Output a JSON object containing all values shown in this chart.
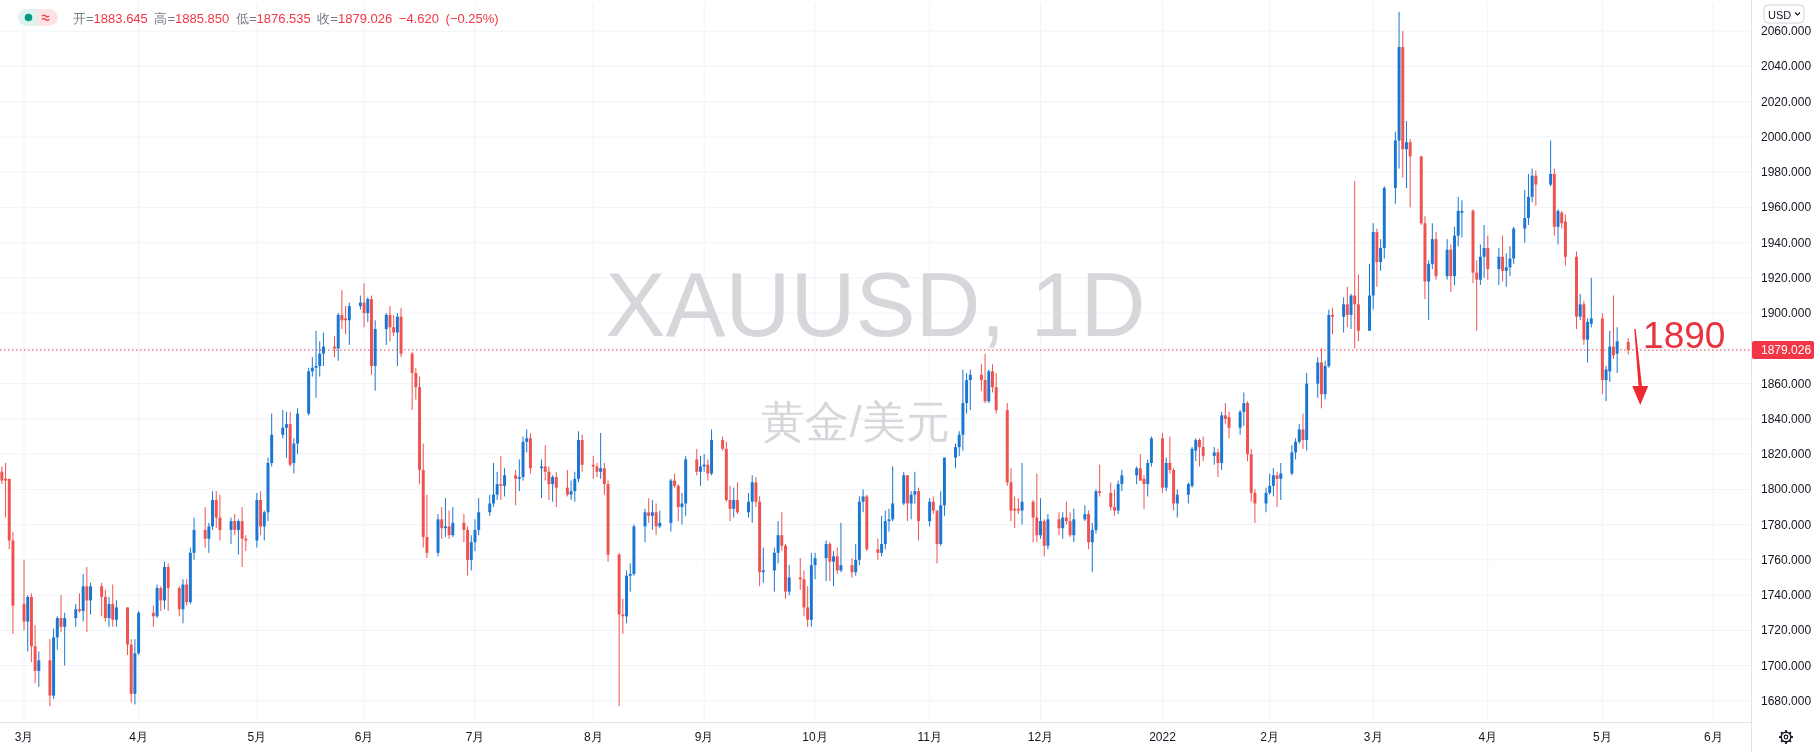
{
  "chart_data": {
    "type": "candlestick",
    "title": "XAUUSD, 1D",
    "subtitle": "黄金/美元",
    "ylabel": "USD",
    "annotations": [
      "开=1883.645 高=1885.850 低=1876.535 收=1879.026 −4.620 (−0.25%)",
      "1890"
    ],
    "x": [
      "2021-02-23",
      "2021-02-24",
      "2021-02-25",
      "2021-02-26",
      "2021-03-01",
      "2021-03-02",
      "2021-03-03",
      "2021-03-04",
      "2021-03-05",
      "2021-03-08",
      "2021-03-09",
      "2021-03-10",
      "2021-03-11",
      "2021-03-12",
      "2021-03-15",
      "2021-03-16",
      "2021-03-17",
      "2021-03-18",
      "2021-03-19",
      "2021-03-22",
      "2021-03-23",
      "2021-03-24",
      "2021-03-25",
      "2021-03-26",
      "2021-03-29",
      "2021-03-30",
      "2021-03-31",
      "2021-04-01",
      "2021-04-05",
      "2021-04-06",
      "2021-04-07",
      "2021-04-08",
      "2021-04-09",
      "2021-04-12",
      "2021-04-13",
      "2021-04-14",
      "2021-04-15",
      "2021-04-16",
      "2021-04-19",
      "2021-04-20",
      "2021-04-21",
      "2021-04-22",
      "2021-04-23",
      "2021-04-26",
      "2021-04-27",
      "2021-04-28",
      "2021-04-29",
      "2021-04-30",
      "2021-05-03",
      "2021-05-04",
      "2021-05-05",
      "2021-05-06",
      "2021-05-07",
      "2021-05-10",
      "2021-05-11",
      "2021-05-12",
      "2021-05-13",
      "2021-05-14",
      "2021-05-17",
      "2021-05-18",
      "2021-05-19",
      "2021-05-20",
      "2021-05-21",
      "2021-05-24",
      "2021-05-25",
      "2021-05-26",
      "2021-05-27",
      "2021-05-28",
      "2021-05-31",
      "2021-06-01",
      "2021-06-02",
      "2021-06-03",
      "2021-06-04",
      "2021-06-07",
      "2021-06-08",
      "2021-06-09",
      "2021-06-10",
      "2021-06-11",
      "2021-06-14",
      "2021-06-15",
      "2021-06-16",
      "2021-06-17",
      "2021-06-18",
      "2021-06-21",
      "2021-06-22",
      "2021-06-23",
      "2021-06-24",
      "2021-06-25",
      "2021-06-28",
      "2021-06-29",
      "2021-06-30",
      "2021-07-01",
      "2021-07-02",
      "2021-07-05",
      "2021-07-06",
      "2021-07-07",
      "2021-07-08",
      "2021-07-09",
      "2021-07-12",
      "2021-07-13",
      "2021-07-14",
      "2021-07-15",
      "2021-07-16",
      "2021-07-19",
      "2021-07-20",
      "2021-07-21",
      "2021-07-22",
      "2021-07-23",
      "2021-07-26",
      "2021-07-27",
      "2021-07-28",
      "2021-07-29",
      "2021-07-30",
      "2021-08-02",
      "2021-08-03",
      "2021-08-04",
      "2021-08-05",
      "2021-08-06",
      "2021-08-09",
      "2021-08-10",
      "2021-08-11",
      "2021-08-12",
      "2021-08-13",
      "2021-08-16",
      "2021-08-17",
      "2021-08-18",
      "2021-08-19",
      "2021-08-20",
      "2021-08-23",
      "2021-08-24",
      "2021-08-25",
      "2021-08-26",
      "2021-08-27",
      "2021-08-30",
      "2021-08-31",
      "2021-09-01",
      "2021-09-02",
      "2021-09-03",
      "2021-09-06",
      "2021-09-07",
      "2021-09-08",
      "2021-09-09",
      "2021-09-10",
      "2021-09-13",
      "2021-09-14",
      "2021-09-15",
      "2021-09-16",
      "2021-09-17",
      "2021-09-20",
      "2021-09-21",
      "2021-09-22",
      "2021-09-23",
      "2021-09-24",
      "2021-09-27",
      "2021-09-28",
      "2021-09-29",
      "2021-09-30",
      "2021-10-01",
      "2021-10-04",
      "2021-10-05",
      "2021-10-06",
      "2021-10-07",
      "2021-10-08",
      "2021-10-11",
      "2021-10-12",
      "2021-10-13",
      "2021-10-14",
      "2021-10-15",
      "2021-10-18",
      "2021-10-19",
      "2021-10-20",
      "2021-10-21",
      "2021-10-22",
      "2021-10-25",
      "2021-10-26",
      "2021-10-27",
      "2021-10-28",
      "2021-10-29",
      "2021-11-01",
      "2021-11-02",
      "2021-11-03",
      "2021-11-04",
      "2021-11-05",
      "2021-11-08",
      "2021-11-09",
      "2021-11-10",
      "2021-11-11",
      "2021-11-12",
      "2021-11-15",
      "2021-11-16",
      "2021-11-17",
      "2021-11-18",
      "2021-11-19",
      "2021-11-22",
      "2021-11-23",
      "2021-11-24",
      "2021-11-25",
      "2021-11-26",
      "2021-11-29",
      "2021-11-30",
      "2021-12-01",
      "2021-12-02",
      "2021-12-03",
      "2021-12-06",
      "2021-12-07",
      "2021-12-08",
      "2021-12-09",
      "2021-12-10",
      "2021-12-13",
      "2021-12-14",
      "2021-12-15",
      "2021-12-16",
      "2021-12-17",
      "2021-12-20",
      "2021-12-21",
      "2021-12-22",
      "2021-12-23",
      "2021-12-27",
      "2021-12-28",
      "2021-12-29",
      "2021-12-30",
      "2021-12-31",
      "2022-01-03",
      "2022-01-04",
      "2022-01-05",
      "2022-01-06",
      "2022-01-07",
      "2022-01-10",
      "2022-01-11",
      "2022-01-12",
      "2022-01-13",
      "2022-01-14",
      "2022-01-17",
      "2022-01-18",
      "2022-01-19",
      "2022-01-20",
      "2022-01-21",
      "2022-01-24",
      "2022-01-25",
      "2022-01-26",
      "2022-01-27",
      "2022-01-28",
      "2022-01-31",
      "2022-02-01",
      "2022-02-02",
      "2022-02-03",
      "2022-02-04",
      "2022-02-07",
      "2022-02-08",
      "2022-02-09",
      "2022-02-10",
      "2022-02-11",
      "2022-02-14",
      "2022-02-15",
      "2022-02-16",
      "2022-02-17",
      "2022-02-18",
      "2022-02-21",
      "2022-02-22",
      "2022-02-23",
      "2022-02-24",
      "2022-02-25",
      "2022-02-28",
      "2022-03-01",
      "2022-03-02",
      "2022-03-03",
      "2022-03-04",
      "2022-03-07",
      "2022-03-08",
      "2022-03-09",
      "2022-03-10",
      "2022-03-11",
      "2022-03-14",
      "2022-03-15",
      "2022-03-16",
      "2022-03-17",
      "2022-03-18",
      "2022-03-21",
      "2022-03-22",
      "2022-03-23",
      "2022-03-24",
      "2022-03-25",
      "2022-03-28",
      "2022-03-29",
      "2022-03-30",
      "2022-03-31",
      "2022-04-01",
      "2022-04-04",
      "2022-04-05",
      "2022-04-06",
      "2022-04-07",
      "2022-04-08",
      "2022-04-11",
      "2022-04-12",
      "2022-04-13",
      "2022-04-14",
      "2022-04-18",
      "2022-04-19",
      "2022-04-20",
      "2022-04-21",
      "2022-04-22",
      "2022-04-25",
      "2022-04-26",
      "2022-04-27",
      "2022-04-28",
      "2022-04-29",
      "2022-05-02",
      "2022-05-03",
      "2022-05-04",
      "2022-05-05",
      "2022-05-06",
      "2022-05-09"
    ],
    "ohlc": [
      [
        1810,
        1813,
        1803,
        1805
      ],
      [
        1806,
        1815,
        1784,
        1805
      ],
      [
        1806,
        1806,
        1766,
        1771
      ],
      [
        1771,
        1776,
        1718,
        1734
      ],
      [
        1735,
        1760,
        1720,
        1725
      ],
      [
        1725,
        1740,
        1708,
        1739
      ],
      [
        1739,
        1741,
        1702,
        1711
      ],
      [
        1711,
        1723,
        1690,
        1697
      ],
      [
        1697,
        1708,
        1688,
        1703
      ],
      [
        1703,
        1715,
        1677,
        1683
      ],
      [
        1683,
        1721,
        1681,
        1716
      ],
      [
        1716,
        1728,
        1709,
        1727
      ],
      [
        1727,
        1740,
        1719,
        1722
      ],
      [
        1722,
        1730,
        1700,
        1727
      ],
      [
        1727,
        1735,
        1722,
        1732
      ],
      [
        1732,
        1741,
        1730,
        1731
      ],
      [
        1731,
        1752,
        1725,
        1745
      ],
      [
        1745,
        1756,
        1719,
        1737
      ],
      [
        1737,
        1747,
        1729,
        1745
      ],
      [
        1745,
        1747,
        1728,
        1739
      ],
      [
        1739,
        1743,
        1725,
        1727
      ],
      [
        1727,
        1739,
        1722,
        1735
      ],
      [
        1735,
        1746,
        1722,
        1726
      ],
      [
        1726,
        1737,
        1722,
        1733
      ],
      [
        1733,
        1733,
        1706,
        1712
      ],
      [
        1712,
        1715,
        1679,
        1684
      ],
      [
        1684,
        1715,
        1678,
        1707
      ],
      [
        1707,
        1731,
        1706,
        1730
      ],
      [
        1730,
        1734,
        1722,
        1728
      ],
      [
        1728,
        1746,
        1727,
        1744
      ],
      [
        1744,
        1745,
        1731,
        1737
      ],
      [
        1737,
        1759,
        1732,
        1756
      ],
      [
        1756,
        1758,
        1731,
        1744
      ],
      [
        1744,
        1745,
        1728,
        1732
      ],
      [
        1732,
        1749,
        1724,
        1746
      ],
      [
        1746,
        1749,
        1734,
        1736
      ],
      [
        1736,
        1767,
        1735,
        1764
      ],
      [
        1764,
        1784,
        1760,
        1777
      ],
      [
        1777,
        1790,
        1767,
        1772
      ],
      [
        1772,
        1781,
        1764,
        1779
      ],
      [
        1779,
        1799,
        1777,
        1794
      ],
      [
        1794,
        1799,
        1778,
        1784
      ],
      [
        1784,
        1797,
        1771,
        1777
      ],
      [
        1777,
        1784,
        1769,
        1782
      ],
      [
        1782,
        1786,
        1774,
        1777
      ],
      [
        1777,
        1783,
        1763,
        1782
      ],
      [
        1782,
        1790,
        1756,
        1772
      ],
      [
        1772,
        1774,
        1765,
        1771
      ],
      [
        1771,
        1798,
        1767,
        1794
      ],
      [
        1794,
        1799,
        1774,
        1779
      ],
      [
        1779,
        1788,
        1771,
        1787
      ],
      [
        1787,
        1818,
        1782,
        1815
      ],
      [
        1815,
        1843,
        1813,
        1831
      ],
      [
        1831,
        1845,
        1829,
        1835
      ],
      [
        1835,
        1844,
        1818,
        1837
      ],
      [
        1837,
        1844,
        1813,
        1814
      ],
      [
        1815,
        1829,
        1809,
        1826
      ],
      [
        1826,
        1846,
        1820,
        1843
      ],
      [
        1843,
        1869,
        1842,
        1867
      ],
      [
        1867,
        1875,
        1864,
        1869
      ],
      [
        1869,
        1890,
        1852,
        1870
      ],
      [
        1870,
        1884,
        1864,
        1877
      ],
      [
        1877,
        1889,
        1870,
        1881
      ],
      [
        1881,
        1887,
        1875,
        1880
      ],
      [
        1880,
        1900,
        1873,
        1899
      ],
      [
        1899,
        1913,
        1891,
        1896
      ],
      [
        1897,
        1904,
        1888,
        1896
      ],
      [
        1896,
        1906,
        1882,
        1904
      ],
      [
        1904,
        1910,
        1902,
        1906
      ],
      [
        1906,
        1917,
        1892,
        1900
      ],
      [
        1900,
        1909,
        1895,
        1908
      ],
      [
        1908,
        1910,
        1865,
        1870
      ],
      [
        1870,
        1896,
        1856,
        1891
      ],
      [
        1891,
        1900,
        1882,
        1899
      ],
      [
        1899,
        1904,
        1884,
        1892
      ],
      [
        1892,
        1899,
        1887,
        1889
      ],
      [
        1889,
        1900,
        1870,
        1898
      ],
      [
        1898,
        1903,
        1875,
        1877
      ],
      [
        1877,
        1878,
        1845,
        1866
      ],
      [
        1866,
        1869,
        1851,
        1858
      ],
      [
        1858,
        1864,
        1803,
        1811
      ],
      [
        1811,
        1826,
        1767,
        1773
      ],
      [
        1773,
        1797,
        1761,
        1764
      ],
      [
        1764,
        1786,
        1762,
        1783
      ],
      [
        1783,
        1790,
        1772,
        1778
      ],
      [
        1778,
        1795,
        1773,
        1779
      ],
      [
        1779,
        1788,
        1772,
        1774
      ],
      [
        1774,
        1790,
        1773,
        1781
      ],
      [
        1781,
        1786,
        1770,
        1777
      ],
      [
        1777,
        1779,
        1751,
        1760
      ],
      [
        1760,
        1774,
        1754,
        1770
      ],
      [
        1770,
        1783,
        1765,
        1777
      ],
      [
        1777,
        1795,
        1774,
        1787
      ],
      [
        1787,
        1797,
        1785,
        1792
      ],
      [
        1792,
        1815,
        1790,
        1797
      ],
      [
        1797,
        1810,
        1794,
        1803
      ],
      [
        1803,
        1819,
        1794,
        1802
      ],
      [
        1802,
        1812,
        1796,
        1808
      ],
      [
        1808,
        1811,
        1791,
        1806
      ],
      [
        1806,
        1817,
        1799,
        1807
      ],
      [
        1807,
        1830,
        1805,
        1827
      ],
      [
        1827,
        1834,
        1821,
        1829
      ],
      [
        1829,
        1832,
        1809,
        1812
      ],
      [
        1812,
        1817,
        1795,
        1813
      ],
      [
        1813,
        1825,
        1805,
        1810
      ],
      [
        1810,
        1813,
        1794,
        1803
      ],
      [
        1803,
        1808,
        1793,
        1807
      ],
      [
        1807,
        1810,
        1790,
        1801
      ],
      [
        1801,
        1811,
        1796,
        1797
      ],
      [
        1797,
        1805,
        1794,
        1799
      ],
      [
        1799,
        1810,
        1793,
        1806
      ],
      [
        1806,
        1833,
        1804,
        1828
      ],
      [
        1828,
        1831,
        1810,
        1814
      ],
      [
        1814,
        1819,
        1806,
        1813
      ],
      [
        1813,
        1815,
        1807,
        1810
      ],
      [
        1810,
        1832,
        1806,
        1812
      ],
      [
        1812,
        1815,
        1797,
        1803
      ],
      [
        1803,
        1805,
        1759,
        1763
      ],
      [
        1763,
        1764,
        1677,
        1729
      ],
      [
        1729,
        1738,
        1718,
        1728
      ],
      [
        1728,
        1754,
        1724,
        1751
      ],
      [
        1751,
        1758,
        1742,
        1752
      ],
      [
        1752,
        1780,
        1751,
        1779
      ],
      [
        1779,
        1789,
        1770,
        1787
      ],
      [
        1787,
        1795,
        1781,
        1785
      ],
      [
        1785,
        1794,
        1777,
        1787
      ],
      [
        1787,
        1792,
        1774,
        1779
      ],
      [
        1779,
        1788,
        1778,
        1781
      ],
      [
        1781,
        1806,
        1776,
        1805
      ],
      [
        1805,
        1809,
        1801,
        1802
      ],
      [
        1802,
        1803,
        1782,
        1790
      ],
      [
        1790,
        1798,
        1780,
        1792
      ],
      [
        1792,
        1819,
        1785,
        1817
      ],
      [
        1817,
        1823,
        1808,
        1810
      ],
      [
        1810,
        1819,
        1802,
        1813
      ],
      [
        1813,
        1820,
        1810,
        1814
      ],
      [
        1814,
        1817,
        1805,
        1809
      ],
      [
        1809,
        1834,
        1808,
        1828
      ],
      [
        1828,
        1830,
        1822,
        1823
      ],
      [
        1823,
        1827,
        1793,
        1794
      ],
      [
        1794,
        1802,
        1782,
        1789
      ],
      [
        1789,
        1801,
        1784,
        1794
      ],
      [
        1794,
        1804,
        1786,
        1787
      ],
      [
        1787,
        1798,
        1784,
        1793
      ],
      [
        1793,
        1808,
        1781,
        1804
      ],
      [
        1804,
        1807,
        1790,
        1793
      ],
      [
        1793,
        1796,
        1745,
        1753
      ],
      [
        1753,
        1767,
        1747,
        1754
      ],
      [
        1754,
        1767,
        1742,
        1764
      ],
      [
        1764,
        1782,
        1758,
        1774
      ],
      [
        1774,
        1787,
        1765,
        1768
      ],
      [
        1768,
        1769,
        1738,
        1742
      ],
      [
        1742,
        1757,
        1740,
        1750
      ],
      [
        1750,
        1761,
        1743,
        1749
      ],
      [
        1749,
        1754,
        1728,
        1733
      ],
      [
        1733,
        1745,
        1722,
        1726
      ],
      [
        1726,
        1764,
        1722,
        1757
      ],
      [
        1757,
        1764,
        1749,
        1761
      ],
      [
        1761,
        1771,
        1748,
        1769
      ],
      [
        1769,
        1770,
        1748,
        1759
      ],
      [
        1759,
        1765,
        1745,
        1762
      ],
      [
        1762,
        1767,
        1752,
        1754
      ],
      [
        1754,
        1781,
        1753,
        1757
      ],
      [
        1757,
        1761,
        1750,
        1753
      ],
      [
        1753,
        1769,
        1751,
        1760
      ],
      [
        1760,
        1796,
        1757,
        1793
      ],
      [
        1793,
        1800,
        1787,
        1796
      ],
      [
        1796,
        1797,
        1765,
        1766
      ],
      [
        1766,
        1772,
        1760,
        1764
      ],
      [
        1764,
        1785,
        1762,
        1769
      ],
      [
        1769,
        1788,
        1766,
        1782
      ],
      [
        1782,
        1789,
        1776,
        1783
      ],
      [
        1783,
        1813,
        1782,
        1792
      ],
      [
        1792,
        1810,
        1791,
        1808
      ],
      [
        1808,
        1808,
        1782,
        1792
      ],
      [
        1792,
        1799,
        1783,
        1797
      ],
      [
        1797,
        1810,
        1792,
        1799
      ],
      [
        1799,
        1801,
        1771,
        1782
      ],
      [
        1782,
        1795,
        1779,
        1793
      ],
      [
        1793,
        1796,
        1786,
        1788
      ],
      [
        1788,
        1788,
        1758,
        1769
      ],
      [
        1769,
        1799,
        1768,
        1791
      ],
      [
        1791,
        1818,
        1785,
        1818
      ],
      [
        1818,
        1826,
        1812,
        1824
      ],
      [
        1824,
        1833,
        1819,
        1831
      ],
      [
        1831,
        1868,
        1822,
        1849
      ],
      [
        1849,
        1866,
        1843,
        1862
      ],
      [
        1862,
        1868,
        1845,
        1865
      ],
      [
        1865,
        1871,
        1856,
        1862
      ],
      [
        1862,
        1877,
        1849,
        1850
      ],
      [
        1850,
        1868,
        1849,
        1867
      ],
      [
        1867,
        1871,
        1855,
        1858
      ],
      [
        1858,
        1866,
        1843,
        1845
      ],
      [
        1845,
        1849,
        1802,
        1804
      ],
      [
        1804,
        1812,
        1782,
        1788
      ],
      [
        1789,
        1796,
        1778,
        1788
      ],
      [
        1789,
        1795,
        1786,
        1788
      ],
      [
        1788,
        1815,
        1780,
        1793
      ],
      [
        1793,
        1794,
        1770,
        1784
      ],
      [
        1784,
        1809,
        1770,
        1774
      ],
      [
        1774,
        1795,
        1772,
        1782
      ],
      [
        1782,
        1783,
        1762,
        1768
      ],
      [
        1768,
        1786,
        1766,
        1783
      ],
      [
        1783,
        1787,
        1774,
        1778
      ],
      [
        1778,
        1787,
        1772,
        1784
      ],
      [
        1784,
        1793,
        1780,
        1782
      ],
      [
        1782,
        1787,
        1773,
        1774
      ],
      [
        1774,
        1789,
        1770,
        1783
      ],
      [
        1783,
        1791,
        1782,
        1786
      ],
      [
        1786,
        1788,
        1766,
        1770
      ],
      [
        1770,
        1781,
        1753,
        1777
      ],
      [
        1777,
        1800,
        1775,
        1799
      ],
      [
        1799,
        1814,
        1796,
        1798
      ],
      [
        1798,
        1804,
        1788,
        1790
      ],
      [
        1790,
        1800,
        1785,
        1788
      ],
      [
        1788,
        1805,
        1786,
        1803
      ],
      [
        1803,
        1811,
        1799,
        1808
      ],
      [
        1808,
        1813,
        1803,
        1812
      ],
      [
        1812,
        1820,
        1805,
        1805
      ],
      [
        1806,
        1808,
        1789,
        1803
      ],
      [
        1803,
        1817,
        1796,
        1815
      ],
      [
        1815,
        1830,
        1813,
        1829
      ],
      [
        1829,
        1832,
        1798,
        1801
      ],
      [
        1801,
        1818,
        1799,
        1815
      ],
      [
        1815,
        1830,
        1809,
        1811
      ],
      [
        1811,
        1812,
        1788,
        1792
      ],
      [
        1792,
        1800,
        1784,
        1797
      ],
      [
        1797,
        1804,
        1792,
        1803
      ],
      [
        1802,
        1824,
        1801,
        1823
      ],
      [
        1822,
        1829,
        1816,
        1828
      ],
      [
        1828,
        1829,
        1813,
        1824
      ],
      [
        1824,
        1830,
        1816,
        1819
      ],
      [
        1819,
        1824,
        1814,
        1821
      ],
      [
        1821,
        1823,
        1807,
        1815
      ],
      [
        1815,
        1844,
        1811,
        1842
      ],
      [
        1842,
        1849,
        1837,
        1840
      ],
      [
        1841,
        1844,
        1829,
        1835
      ],
      [
        1835,
        1845,
        1831,
        1844
      ],
      [
        1844,
        1855,
        1836,
        1849
      ],
      [
        1849,
        1850,
        1816,
        1820
      ],
      [
        1820,
        1823,
        1793,
        1798
      ],
      [
        1798,
        1800,
        1781,
        1792
      ],
      [
        1792,
        1801,
        1787,
        1798
      ],
      [
        1798,
        1809,
        1797,
        1802
      ],
      [
        1802,
        1812,
        1796,
        1808
      ],
      [
        1808,
        1810,
        1790,
        1806
      ],
      [
        1806,
        1815,
        1794,
        1809
      ],
      [
        1809,
        1825,
        1808,
        1821
      ],
      [
        1821,
        1829,
        1817,
        1827
      ],
      [
        1827,
        1837,
        1826,
        1834
      ],
      [
        1834,
        1843,
        1823,
        1828
      ],
      [
        1828,
        1866,
        1822,
        1860
      ],
      [
        1860,
        1875,
        1852,
        1872
      ],
      [
        1872,
        1880,
        1846,
        1854
      ],
      [
        1854,
        1873,
        1851,
        1870
      ],
      [
        1870,
        1902,
        1869,
        1899
      ],
      [
        1899,
        1903,
        1888,
        1898
      ],
      [
        1898,
        1909,
        1889,
        1905
      ],
      [
        1905,
        1915,
        1892,
        1899
      ],
      [
        1899,
        1911,
        1891,
        1910
      ],
      [
        1910,
        1975,
        1880,
        1905
      ],
      [
        1905,
        1922,
        1884,
        1890
      ],
      [
        1890,
        1928,
        1890,
        1910
      ],
      [
        1910,
        1951,
        1902,
        1946
      ],
      [
        1946,
        1948,
        1915,
        1929
      ],
      [
        1929,
        1942,
        1924,
        1937
      ],
      [
        1937,
        1972,
        1931,
        1971
      ],
      [
        1971,
        2003,
        1962,
        1998
      ],
      [
        1998,
        2071,
        1982,
        2051
      ],
      [
        2051,
        2060,
        1977,
        1993
      ],
      [
        1993,
        2009,
        1971,
        1997
      ],
      [
        1997,
        1999,
        1960,
        1989
      ],
      [
        1989,
        1989,
        1950,
        1951
      ],
      [
        1951,
        1955,
        1908,
        1918
      ],
      [
        1918,
        1930,
        1896,
        1928
      ],
      [
        1928,
        1951,
        1925,
        1942
      ],
      [
        1942,
        1946,
        1919,
        1921
      ],
      [
        1921,
        1942,
        1919,
        1936
      ],
      [
        1936,
        1939,
        1912,
        1921
      ],
      [
        1921,
        1949,
        1916,
        1944
      ],
      [
        1944,
        1966,
        1938,
        1958
      ],
      [
        1957,
        1964,
        1943,
        1958
      ],
      [
        1958,
        1959,
        1917,
        1923
      ],
      [
        1923,
        1930,
        1890,
        1919
      ],
      [
        1919,
        1939,
        1916,
        1932
      ],
      [
        1932,
        1950,
        1920,
        1937
      ],
      [
        1937,
        1944,
        1919,
        1925
      ],
      [
        1925,
        1937,
        1916,
        1932
      ],
      [
        1932,
        1944,
        1918,
        1924
      ],
      [
        1924,
        1934,
        1915,
        1926
      ],
      [
        1926,
        1938,
        1921,
        1931
      ],
      [
        1931,
        1949,
        1928,
        1948
      ],
      [
        1948,
        1970,
        1940,
        1954
      ],
      [
        1954,
        1979,
        1950,
        1966
      ],
      [
        1966,
        1982,
        1963,
        1978
      ],
      [
        1978,
        1981,
        1961,
        1973
      ],
      [
        1973,
        1998,
        1972,
        1979
      ],
      [
        1979,
        1982,
        1944,
        1949
      ],
      [
        1949,
        1959,
        1939,
        1958
      ],
      [
        1957,
        1958,
        1948,
        1951
      ],
      [
        1952,
        1956,
        1927,
        1932
      ],
      [
        1932,
        1935,
        1891,
        1898
      ],
      [
        1898,
        1911,
        1896,
        1905
      ],
      [
        1905,
        1907,
        1882,
        1885
      ],
      [
        1885,
        1897,
        1872,
        1895
      ],
      [
        1894,
        1920,
        1892,
        1897
      ],
      [
        1897,
        1900,
        1854,
        1862
      ],
      [
        1862,
        1870,
        1850,
        1868
      ],
      [
        1867,
        1890,
        1861,
        1881
      ],
      [
        1881,
        1910,
        1874,
        1876
      ],
      [
        1877,
        1892,
        1866,
        1884
      ],
      [
        1883.645,
        1885.85,
        1876.535,
        1879.026
      ]
    ],
    "colors": [
      "#ef5350",
      "#ef5350",
      "#ef5350",
      "#ef5350",
      "#ef5350",
      "#1976d2",
      "#ef5350",
      "#ef5350",
      "#1976d2",
      "#ef5350",
      "#1976d2",
      "#1976d2",
      "#ef5350",
      "#1976d2",
      "#1976d2",
      "#ef5350",
      "#1976d2",
      "#ef5350",
      "#1976d2",
      "#ef5350",
      "#ef5350",
      "#1976d2",
      "#ef5350",
      "#1976d2",
      "#ef5350",
      "#ef5350",
      "#1976d2",
      "#1976d2",
      "#ef5350",
      "#1976d2",
      "#ef5350",
      "#1976d2",
      "#ef5350",
      "#ef5350",
      "#1976d2",
      "#ef5350",
      "#1976d2",
      "#1976d2",
      "#ef5350",
      "#1976d2",
      "#1976d2",
      "#ef5350",
      "#ef5350",
      "#1976d2",
      "#ef5350",
      "#1976d2",
      "#ef5350",
      "#ef5350",
      "#1976d2",
      "#ef5350",
      "#1976d2",
      "#1976d2",
      "#1976d2",
      "#1976d2",
      "#1976d2",
      "#ef5350",
      "#1976d2",
      "#1976d2",
      "#1976d2",
      "#1976d2",
      "#1976d2",
      "#1976d2",
      "#1976d2",
      "#ef5350",
      "#1976d2",
      "#ef5350",
      "#ef5350",
      "#1976d2",
      "#1976d2",
      "#ef5350",
      "#1976d2",
      "#ef5350",
      "#1976d2",
      "#1976d2",
      "#ef5350",
      "#ef5350",
      "#1976d2",
      "#ef5350",
      "#ef5350",
      "#ef5350",
      "#ef5350",
      "#ef5350",
      "#ef5350",
      "#1976d2",
      "#ef5350",
      "#1976d2",
      "#ef5350",
      "#1976d2",
      "#ef5350",
      "#ef5350",
      "#1976d2",
      "#1976d2",
      "#1976d2",
      "#1976d2",
      "#1976d2",
      "#1976d2",
      "#ef5350",
      "#1976d2",
      "#ef5350",
      "#1976d2",
      "#1976d2",
      "#1976d2",
      "#ef5350",
      "#1976d2",
      "#ef5350",
      "#ef5350",
      "#1976d2",
      "#ef5350",
      "#ef5350",
      "#1976d2",
      "#1976d2",
      "#1976d2",
      "#ef5350",
      "#ef5350",
      "#ef5350",
      "#1976d2",
      "#ef5350",
      "#ef5350",
      "#ef5350",
      "#ef5350",
      "#1976d2",
      "#1976d2",
      "#1976d2",
      "#1976d2",
      "#ef5350",
      "#1976d2",
      "#ef5350",
      "#1976d2",
      "#1976d2",
      "#ef5350",
      "#ef5350",
      "#1976d2",
      "#1976d2",
      "#ef5350",
      "#1976d2",
      "#1976d2",
      "#ef5350",
      "#1976d2",
      "#ef5350",
      "#ef5350",
      "#ef5350",
      "#1976d2",
      "#ef5350",
      "#1976d2",
      "#1976d2",
      "#ef5350",
      "#ef5350",
      "#1976d2",
      "#1976d2",
      "#1976d2",
      "#ef5350",
      "#ef5350",
      "#1976d2",
      "#ef5350",
      "#ef5350",
      "#ef5350",
      "#1976d2",
      "#1976d2",
      "#1976d2",
      "#ef5350",
      "#1976d2",
      "#ef5350",
      "#1976d2",
      "#ef5350",
      "#1976d2",
      "#1976d2",
      "#1976d2",
      "#ef5350",
      "#ef5350",
      "#1976d2",
      "#1976d2",
      "#1976d2",
      "#1976d2",
      "#1976d2",
      "#ef5350",
      "#1976d2",
      "#1976d2",
      "#ef5350",
      "#1976d2",
      "#ef5350",
      "#ef5350",
      "#1976d2",
      "#1976d2",
      "#1976d2",
      "#1976d2",
      "#1976d2",
      "#1976d2",
      "#1976d2",
      "#ef5350",
      "#ef5350",
      "#1976d2",
      "#ef5350",
      "#ef5350",
      "#ef5350",
      "#ef5350",
      "#ef5350",
      "#ef5350",
      "#1976d2",
      "#ef5350",
      "#ef5350",
      "#1976d2",
      "#ef5350",
      "#1976d2",
      "#ef5350",
      "#1976d2",
      "#ef5350",
      "#ef5350",
      "#1976d2",
      "#1976d2",
      "#ef5350",
      "#1976d2",
      "#1976d2",
      "#ef5350",
      "#ef5350",
      "#ef5350",
      "#1976d2",
      "#1976d2",
      "#1976d2",
      "#ef5350",
      "#ef5350",
      "#1976d2",
      "#1976d2",
      "#ef5350",
      "#1976d2",
      "#ef5350",
      "#ef5350",
      "#1976d2",
      "#1976d2",
      "#1976d2",
      "#1976d2",
      "#ef5350",
      "#ef5350",
      "#1976d2",
      "#ef5350",
      "#1976d2",
      "#ef5350",
      "#ef5350",
      "#1976d2",
      "#1976d2",
      "#ef5350",
      "#ef5350",
      "#ef5350",
      "#1976d2",
      "#1976d2",
      "#1976d2",
      "#ef5350",
      "#1976d2",
      "#1976d2",
      "#1976d2",
      "#1976d2",
      "#ef5350",
      "#1976d2",
      "#1976d2",
      "#ef5350",
      "#1976d2",
      "#1976d2",
      "#ef5350",
      "#1976d2",
      "#ef5350",
      "#1976d2",
      "#ef5350",
      "#ef5350",
      "#1976d2",
      "#1976d2",
      "#ef5350",
      "#1976d2",
      "#1976d2",
      "#1976d2",
      "#1976d2",
      "#ef5350",
      "#1976d2",
      "#ef5350",
      "#ef5350",
      "#ef5350",
      "#1976d2",
      "#1976d2",
      "#ef5350",
      "#1976d2",
      "#ef5350",
      "#1976d2",
      "#1976d2",
      "#1976d2",
      "#ef5350",
      "#ef5350",
      "#1976d2",
      "#1976d2",
      "#ef5350",
      "#1976d2",
      "#ef5350",
      "#1976d2",
      "#1976d2",
      "#1976d2",
      "#1976d2",
      "#1976d2",
      "#1976d2",
      "#ef5350",
      "#1976d2",
      "#ef5350",
      "#1976d2",
      "#ef5350",
      "#ef5350",
      "#ef5350",
      "#1976d2",
      "#ef5350",
      "#1976d2",
      "#1976d2",
      "#ef5350",
      "#1976d2",
      "#1976d2",
      "#ef5350",
      "#1976d2",
      "#ef5350"
    ],
    "xlim": [
      "2021-02-22T12:00",
      "2022-06-11T05:00"
    ],
    "xticks": [
      {
        "value": "2021-03-01",
        "label": "3月"
      },
      {
        "value": "2021-04-01",
        "label": "4月"
      },
      {
        "value": "2021-05-03",
        "label": "5月"
      },
      {
        "value": "2021-06-01",
        "label": "6月"
      },
      {
        "value": "2021-07-01",
        "label": "7月"
      },
      {
        "value": "2021-08-02",
        "label": "8月"
      },
      {
        "value": "2021-09-01",
        "label": "9月"
      },
      {
        "value": "2021-10-01",
        "label": "10月"
      },
      {
        "value": "2021-11-01",
        "label": "11月"
      },
      {
        "value": "2021-12-01",
        "label": "12月"
      },
      {
        "value": "2022-01-03",
        "label": "2022"
      },
      {
        "value": "2022-02-01",
        "label": "2月"
      },
      {
        "value": "2022-03-01",
        "label": "3月"
      },
      {
        "value": "2022-04-01",
        "label": "4月"
      },
      {
        "value": "2022-05-02",
        "label": "5月"
      },
      {
        "value": "2022-06-01",
        "label": "6月"
      }
    ],
    "ylim": [
      1668,
      2076
    ],
    "yticks": [
      {
        "value": 1680,
        "label": "1680.000"
      },
      {
        "value": 1700,
        "label": "1700.000"
      },
      {
        "value": 1720,
        "label": "1720.000"
      },
      {
        "value": 1740,
        "label": "1740.000"
      },
      {
        "value": 1760,
        "label": "1760.000"
      },
      {
        "value": 1780,
        "label": "1780.000"
      },
      {
        "value": 1800,
        "label": "1800.000"
      },
      {
        "value": 1820,
        "label": "1820.000"
      },
      {
        "value": 1840,
        "label": "1840.000"
      },
      {
        "value": 1860,
        "label": "1860.000"
      },
      {
        "value": 1880,
        "label": null
      },
      {
        "value": 1900,
        "label": "1900.000"
      },
      {
        "value": 1920,
        "label": "1920.000"
      },
      {
        "value": 1940,
        "label": "1940.000"
      },
      {
        "value": 1960,
        "label": "1960.000"
      },
      {
        "value": 1980,
        "label": "1980.000"
      },
      {
        "value": 2000,
        "label": "2000.000"
      },
      {
        "value": 2020,
        "label": "2020.000"
      },
      {
        "value": 2040,
        "label": "2040.000"
      },
      {
        "value": 2060,
        "label": "2060.000"
      }
    ],
    "ref_lines": [
      {
        "axis": "y",
        "value": 1879.026,
        "label": "1879.026",
        "color": "#f23645",
        "line_style": "dotted"
      }
    ],
    "grid": true
  }
}
